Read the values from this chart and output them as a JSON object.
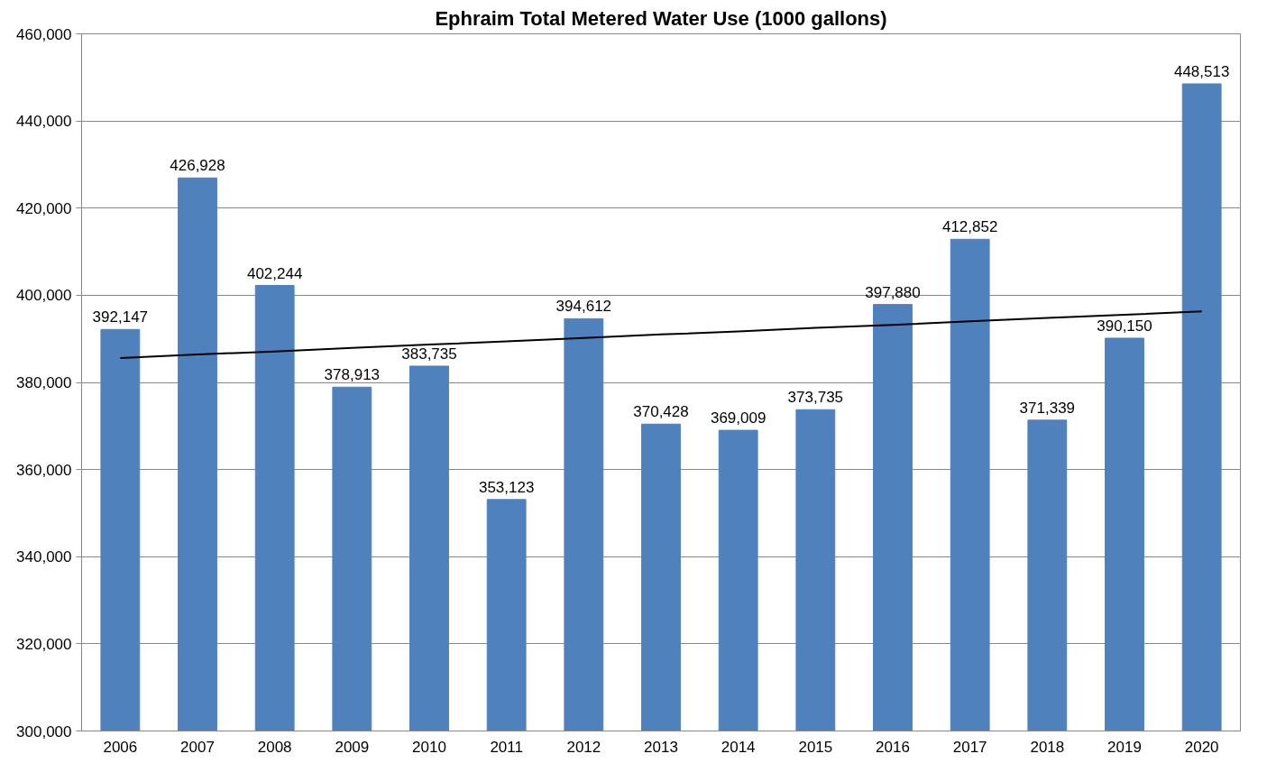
{
  "chart_data": {
    "type": "bar",
    "title": "Ephraim Total Metered Water Use (1000 gallons)",
    "categories": [
      "2006",
      "2007",
      "2008",
      "2009",
      "2010",
      "2011",
      "2012",
      "2013",
      "2014",
      "2015",
      "2016",
      "2017",
      "2018",
      "2019",
      "2020"
    ],
    "series": [
      {
        "color": "#4f81bd",
        "values": [
          392147,
          426928,
          402244,
          378913,
          383735,
          353123,
          394612,
          370428,
          369009,
          373735,
          397880,
          412852,
          371339,
          390150,
          448513
        ],
        "value_labels": [
          "392,147",
          "426,928",
          "402,244",
          "378,913",
          "383,735",
          "353,123",
          "394,612",
          "370,428",
          "369,009",
          "373,735",
          "397,880",
          "412,852",
          "371,339",
          "390,150",
          "448,513"
        ]
      },
      {
        "type": "line",
        "color": "#000000",
        "values": [
          385600,
          386400,
          387100,
          387900,
          388700,
          389400,
          390200,
          391000,
          391700,
          392500,
          393200,
          394000,
          394800,
          395500,
          396300
        ]
      }
    ],
    "ylim": [
      300000,
      460000
    ],
    "yticks": [
      {
        "value": 300000,
        "label": "300,000"
      },
      {
        "value": 320000,
        "label": "320,000"
      },
      {
        "value": 340000,
        "label": "340,000"
      },
      {
        "value": 360000,
        "label": "360,000"
      },
      {
        "value": 380000,
        "label": "380,000"
      },
      {
        "value": 400000,
        "label": "400,000"
      },
      {
        "value": 420000,
        "label": "420,000"
      },
      {
        "value": 440000,
        "label": "440,000"
      },
      {
        "value": 460000,
        "label": "460,000"
      }
    ],
    "grid": "y"
  }
}
